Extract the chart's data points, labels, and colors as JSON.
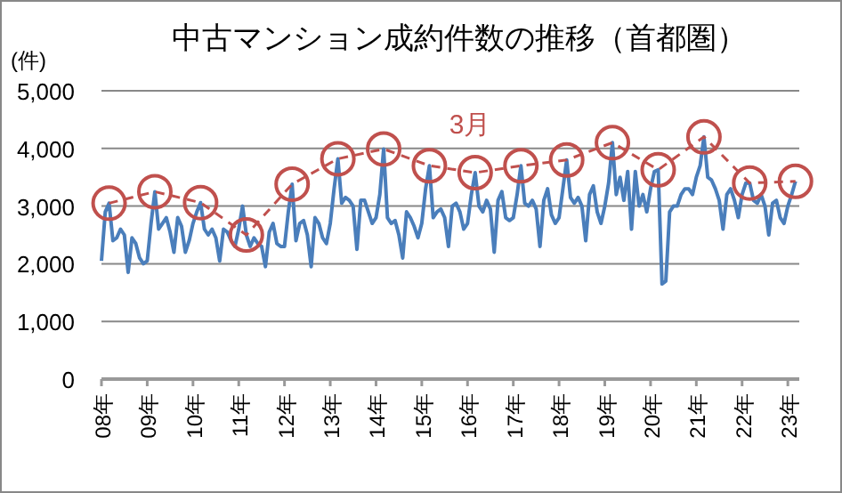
{
  "chart_data": {
    "type": "line",
    "title": "中古マンション成約件数の推移（首都圏）",
    "ylabel": "(件)",
    "x": [
      "2008-01",
      "2008-02",
      "2008-03",
      "2008-04",
      "2008-05",
      "2008-06",
      "2008-07",
      "2008-08",
      "2008-09",
      "2008-10",
      "2008-11",
      "2008-12",
      "2009-01",
      "2009-02",
      "2009-03",
      "2009-04",
      "2009-05",
      "2009-06",
      "2009-07",
      "2009-08",
      "2009-09",
      "2009-10",
      "2009-11",
      "2009-12",
      "2010-01",
      "2010-02",
      "2010-03",
      "2010-04",
      "2010-05",
      "2010-06",
      "2010-07",
      "2010-08",
      "2010-09",
      "2010-10",
      "2010-11",
      "2010-12",
      "2011-01",
      "2011-02",
      "2011-03",
      "2011-04",
      "2011-05",
      "2011-06",
      "2011-07",
      "2011-08",
      "2011-09",
      "2011-10",
      "2011-11",
      "2011-12",
      "2012-01",
      "2012-02",
      "2012-03",
      "2012-04",
      "2012-05",
      "2012-06",
      "2012-07",
      "2012-08",
      "2012-09",
      "2012-10",
      "2012-11",
      "2012-12",
      "2013-01",
      "2013-02",
      "2013-03",
      "2013-04",
      "2013-05",
      "2013-06",
      "2013-07",
      "2013-08",
      "2013-09",
      "2013-10",
      "2013-11",
      "2013-12",
      "2014-01",
      "2014-02",
      "2014-03",
      "2014-04",
      "2014-05",
      "2014-06",
      "2014-07",
      "2014-08",
      "2014-09",
      "2014-10",
      "2014-11",
      "2014-12",
      "2015-01",
      "2015-02",
      "2015-03",
      "2015-04",
      "2015-05",
      "2015-06",
      "2015-07",
      "2015-08",
      "2015-09",
      "2015-10",
      "2015-11",
      "2015-12",
      "2016-01",
      "2016-02",
      "2016-03",
      "2016-04",
      "2016-05",
      "2016-06",
      "2016-07",
      "2016-08",
      "2016-09",
      "2016-10",
      "2016-11",
      "2016-12",
      "2017-01",
      "2017-02",
      "2017-03",
      "2017-04",
      "2017-05",
      "2017-06",
      "2017-07",
      "2017-08",
      "2017-09",
      "2017-10",
      "2017-11",
      "2017-12",
      "2018-01",
      "2018-02",
      "2018-03",
      "2018-04",
      "2018-05",
      "2018-06",
      "2018-07",
      "2018-08",
      "2018-09",
      "2018-10",
      "2018-11",
      "2018-12",
      "2019-01",
      "2019-02",
      "2019-03",
      "2019-04",
      "2019-05",
      "2019-06",
      "2019-07",
      "2019-08",
      "2019-09",
      "2019-10",
      "2019-11",
      "2019-12",
      "2020-01",
      "2020-02",
      "2020-03",
      "2020-04",
      "2020-05",
      "2020-06",
      "2020-07",
      "2020-08",
      "2020-09",
      "2020-10",
      "2020-11",
      "2020-12",
      "2021-01",
      "2021-02",
      "2021-03",
      "2021-04",
      "2021-05",
      "2021-06",
      "2021-07",
      "2021-08",
      "2021-09",
      "2021-10",
      "2021-11",
      "2021-12",
      "2022-01",
      "2022-02",
      "2022-03",
      "2022-04",
      "2022-05",
      "2022-06",
      "2022-07",
      "2022-08",
      "2022-09",
      "2022-10",
      "2022-11",
      "2022-12",
      "2023-01",
      "2023-02",
      "2023-03"
    ],
    "series": [
      {
        "color": "#4a7ebb",
        "marker": "none",
        "line_style": "solid",
        "values": [
          2050,
          2900,
          3050,
          2400,
          2450,
          2600,
          2500,
          1850,
          2450,
          2350,
          2100,
          2000,
          2050,
          2700,
          3250,
          2600,
          2700,
          2800,
          2550,
          2200,
          2800,
          2650,
          2200,
          2400,
          2700,
          2900,
          3060,
          2600,
          2500,
          2600,
          2450,
          2050,
          2600,
          2550,
          2400,
          2300,
          2600,
          3000,
          2500,
          2300,
          2450,
          2350,
          2300,
          1950,
          2550,
          2700,
          2350,
          2300,
          2300,
          2900,
          3380,
          2400,
          2700,
          2750,
          2500,
          1950,
          2800,
          2700,
          2450,
          2350,
          2700,
          3300,
          3820,
          3050,
          3150,
          3100,
          3000,
          2250,
          3100,
          3100,
          2900,
          2700,
          2800,
          3200,
          3990,
          2800,
          2700,
          2750,
          2500,
          2100,
          2900,
          2800,
          2650,
          2450,
          2700,
          3300,
          3700,
          2800,
          2900,
          2950,
          2800,
          2300,
          3000,
          3050,
          2900,
          2600,
          2700,
          3200,
          3580,
          3000,
          2900,
          3100,
          2950,
          2200,
          3100,
          3250,
          2800,
          2750,
          2800,
          3200,
          3700,
          3050,
          3000,
          3100,
          2950,
          2300,
          3100,
          3300,
          2850,
          2700,
          2800,
          3300,
          3800,
          3150,
          3050,
          3150,
          3000,
          2400,
          3200,
          3350,
          2900,
          2700,
          3000,
          3400,
          4100,
          3200,
          3500,
          3100,
          3600,
          2600,
          3600,
          3000,
          3200,
          2900,
          3300,
          3600,
          3630,
          1650,
          1700,
          2900,
          3000,
          3000,
          3200,
          3300,
          3300,
          3200,
          3500,
          3700,
          4200,
          3500,
          3450,
          3300,
          3100,
          2600,
          3200,
          3300,
          3100,
          2800,
          3200,
          3400,
          3400,
          3100,
          3050,
          3200,
          3000,
          2500,
          3050,
          3100,
          2800,
          2700,
          3000,
          3200,
          3430
        ]
      },
      {
        "name": "3月",
        "color": "#c0504d",
        "marker": "circle",
        "line_style": "dashed",
        "x": [
          "2008-03",
          "2009-03",
          "2010-03",
          "2011-03",
          "2012-03",
          "2013-03",
          "2014-03",
          "2015-03",
          "2016-03",
          "2017-03",
          "2018-03",
          "2019-03",
          "2020-03",
          "2021-03",
          "2022-03",
          "2023-03"
        ],
        "values": [
          3050,
          3250,
          3060,
          2500,
          3380,
          3820,
          3990,
          3700,
          3580,
          3700,
          3800,
          4100,
          3630,
          4200,
          3400,
          3430
        ]
      }
    ],
    "xlim": [
      "2008-01",
      "2023-04"
    ],
    "xticks": [
      {
        "value": "2008-01",
        "label": "08年"
      },
      {
        "value": "2009-01",
        "label": "09年"
      },
      {
        "value": "2010-01",
        "label": "10年"
      },
      {
        "value": "2011-01",
        "label": "11年"
      },
      {
        "value": "2012-01",
        "label": "12年"
      },
      {
        "value": "2013-01",
        "label": "13年"
      },
      {
        "value": "2014-01",
        "label": "14年"
      },
      {
        "value": "2015-01",
        "label": "15年"
      },
      {
        "value": "2016-01",
        "label": "16年"
      },
      {
        "value": "2017-01",
        "label": "17年"
      },
      {
        "value": "2018-01",
        "label": "18年"
      },
      {
        "value": "2019-01",
        "label": "19年"
      },
      {
        "value": "2020-01",
        "label": "20年"
      },
      {
        "value": "2021-01",
        "label": "21年"
      },
      {
        "value": "2022-01",
        "label": "22年"
      },
      {
        "value": "2023-01",
        "label": "23年"
      }
    ],
    "ylim": [
      0,
      5000
    ],
    "yticks": [
      {
        "value": 0,
        "label": "0"
      },
      {
        "value": 1000,
        "label": "1,000"
      },
      {
        "value": 2000,
        "label": "2,000"
      },
      {
        "value": 3000,
        "label": "3,000"
      },
      {
        "value": 4000,
        "label": "4,000"
      },
      {
        "value": 5000,
        "label": "5,000"
      }
    ],
    "grid": "y",
    "legend": false
  }
}
